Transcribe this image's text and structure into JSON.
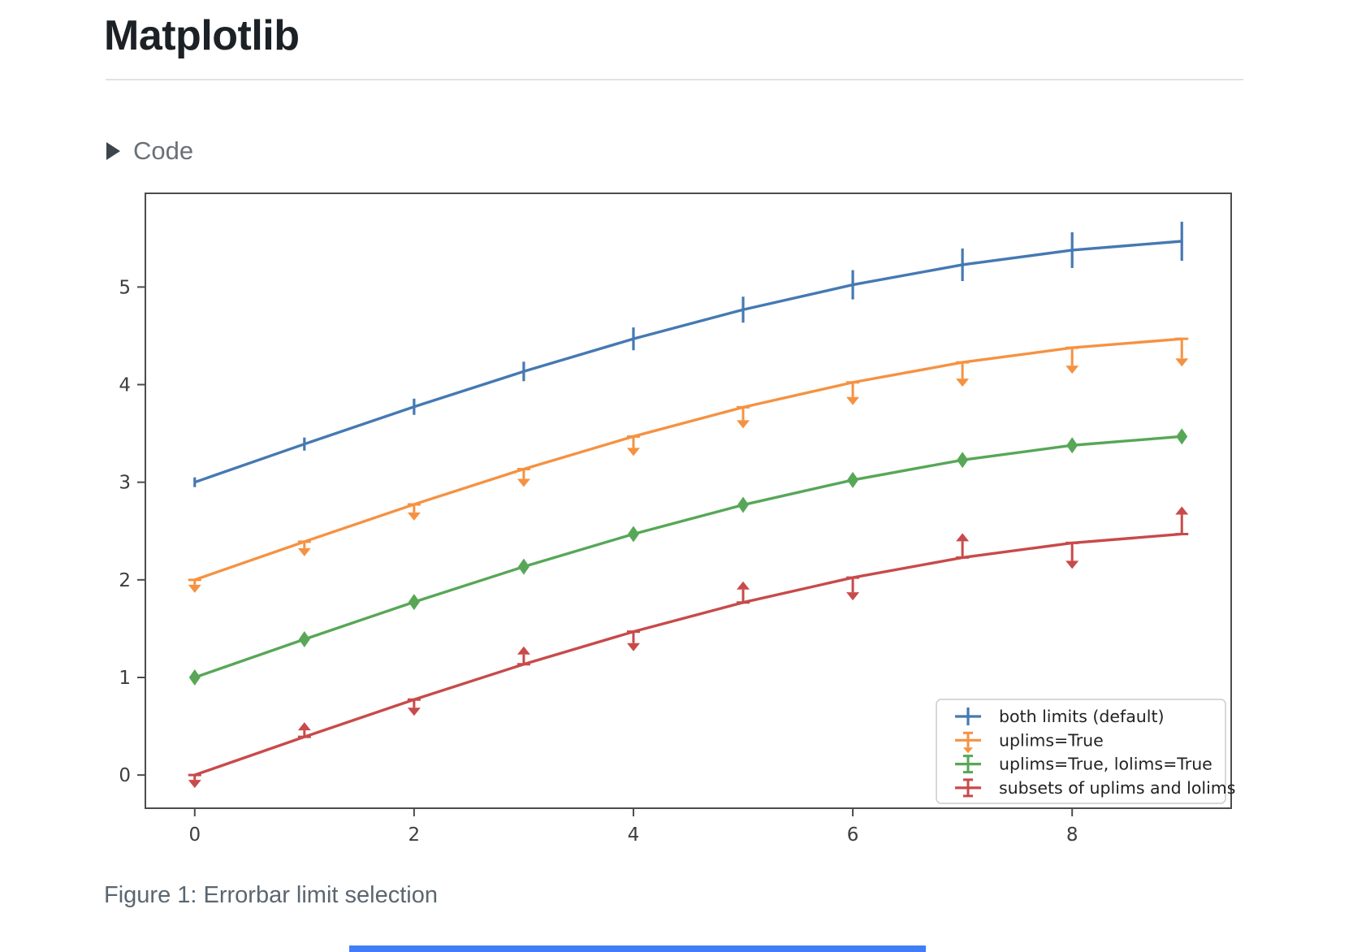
{
  "page": {
    "title": "Matplotlib",
    "code_toggle": {
      "label": "Code",
      "icon": "triangle-right"
    },
    "caption": "Figure 1: Errorbar limit selection"
  },
  "colors": {
    "accent_bar": "#3f7ef7",
    "axis": "#4c4c4c",
    "tick_label": "#3d3d3d",
    "legend_border": "#cccccc",
    "legend_text": "#222222",
    "caption_text": "#5b6670"
  },
  "chart_data": {
    "type": "line",
    "title": "",
    "xlabel": "",
    "ylabel": "",
    "x": [
      0,
      1,
      2,
      3,
      4,
      5,
      6,
      7,
      8,
      9
    ],
    "series": [
      {
        "name": "both limits (default)",
        "color": "#4579b2",
        "limits": "both",
        "values": [
          3.0,
          3.391,
          3.773,
          4.135,
          4.469,
          4.768,
          5.023,
          5.228,
          5.378,
          5.469
        ],
        "yerr": [
          0.05,
          0.067,
          0.083,
          0.1,
          0.117,
          0.133,
          0.15,
          0.167,
          0.183,
          0.2
        ]
      },
      {
        "name": "uplims=True",
        "color": "#f59242",
        "limits": "uplims",
        "values": [
          2.0,
          2.391,
          2.773,
          3.135,
          3.469,
          3.768,
          4.023,
          4.228,
          4.378,
          4.469
        ],
        "yerr": [
          0.05,
          0.067,
          0.083,
          0.1,
          0.117,
          0.133,
          0.15,
          0.167,
          0.183,
          0.2
        ]
      },
      {
        "name": "uplims=True, lolims=True",
        "color": "#57a757",
        "limits": "uplims+lolims",
        "values": [
          1.0,
          1.391,
          1.773,
          2.135,
          2.469,
          2.768,
          3.023,
          3.228,
          3.378,
          3.469
        ],
        "yerr": [
          0.05,
          0.067,
          0.083,
          0.1,
          0.117,
          0.133,
          0.15,
          0.167,
          0.183,
          0.2
        ]
      },
      {
        "name": "subsets of uplims and lolims",
        "color": "#c84a4a",
        "limits": "alternating",
        "uplims_at": [
          0,
          2,
          4,
          6,
          8
        ],
        "lolims_at": [
          1,
          3,
          5,
          7,
          9
        ],
        "values": [
          0.0,
          0.391,
          0.773,
          1.135,
          1.469,
          1.768,
          2.023,
          2.228,
          2.378,
          2.469
        ],
        "yerr": [
          0.05,
          0.067,
          0.083,
          0.1,
          0.117,
          0.133,
          0.15,
          0.167,
          0.183,
          0.2
        ]
      }
    ],
    "xlim": [
      -0.45,
      9.45
    ],
    "ylim": [
      -0.34,
      5.96
    ],
    "x_ticks": [
      0,
      2,
      4,
      6,
      8
    ],
    "y_ticks": [
      0,
      1,
      2,
      3,
      4,
      5
    ],
    "grid": false,
    "legend_position": "lower right"
  }
}
